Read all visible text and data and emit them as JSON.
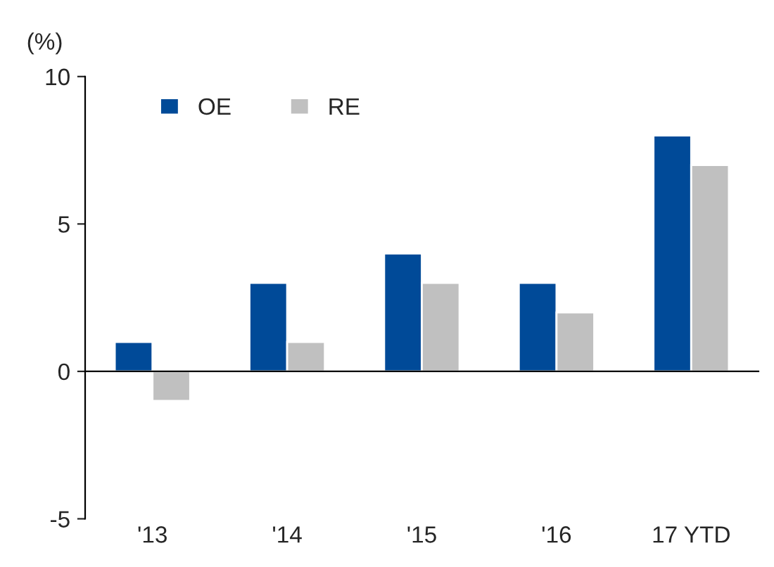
{
  "chart_data": {
    "type": "bar",
    "ylabel": "(%)",
    "categories": [
      "'13",
      "'14",
      "'15",
      "'16",
      "17 YTD"
    ],
    "series": [
      {
        "name": "OE",
        "color": "#004a98",
        "values": [
          1,
          3,
          4,
          3,
          8
        ]
      },
      {
        "name": "RE",
        "color": "#c0c0c0",
        "values": [
          -1,
          1,
          3,
          2,
          7
        ]
      }
    ],
    "ylim": [
      -5,
      10
    ],
    "yticks": [
      -5,
      0,
      5,
      10
    ],
    "legend": "top left"
  }
}
